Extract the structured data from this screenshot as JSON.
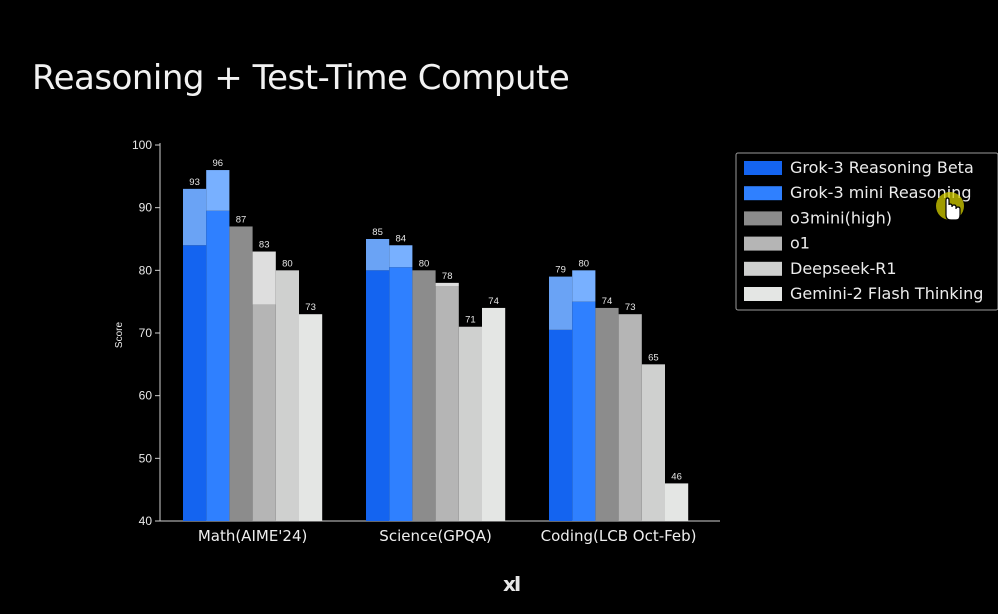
{
  "slide": {
    "title": "Reasoning + Test-Time Compute",
    "logo_text": "xI"
  },
  "chart_data": {
    "type": "bar",
    "title": "",
    "xlabel": "",
    "ylabel": "Score",
    "ylim": [
      40,
      100
    ],
    "yticks": [
      40,
      50,
      60,
      70,
      80,
      90,
      100
    ],
    "legend_position": "top-right (outside plot)",
    "categories": [
      "Math(AIME'24)",
      "Science(GPQA)",
      "Coding(LCB Oct-Feb)"
    ],
    "series": [
      {
        "name": "Grok-3 Reasoning Beta",
        "color": "#1464f0",
        "values": [
          93,
          85,
          79
        ],
        "base_values": [
          84,
          80,
          70.5
        ],
        "label_values": [
          "93",
          "85",
          "79"
        ]
      },
      {
        "name": "Grok-3 mini Reasoning",
        "color": "#2f80ff",
        "values": [
          96,
          84,
          80
        ],
        "base_values": [
          89.5,
          80.5,
          75
        ],
        "label_values": [
          "96",
          "84",
          "80"
        ]
      },
      {
        "name": "o3mini(high)",
        "color": "#8c8c8c",
        "values": [
          87,
          80,
          74
        ],
        "base_values": [
          87,
          80,
          74
        ],
        "label_values": [
          "87",
          "80",
          "74"
        ]
      },
      {
        "name": "o1",
        "color": "#b5b5b5",
        "values": [
          83,
          78,
          73
        ],
        "base_values": [
          74.5,
          77.5,
          73
        ],
        "label_values": [
          "83",
          "78",
          "73"
        ]
      },
      {
        "name": "Deepseek-R1",
        "color": "#cfd0cf",
        "values": [
          80,
          71,
          65
        ],
        "base_values": [
          80,
          71,
          65
        ],
        "label_values": [
          "80",
          "71",
          "65"
        ]
      },
      {
        "name": "Gemini-2 Flash Thinking",
        "color": "#e4e6e4",
        "values": [
          73,
          74,
          46
        ],
        "base_values": [
          73,
          74,
          46
        ],
        "label_values": [
          "73",
          "74",
          "46"
        ]
      }
    ],
    "upper_segment_colors": [
      "#6aa3f5",
      "#78b0ff",
      "#8c8c8c",
      "#dedede",
      "#cfd0cf",
      "#e4e6e4"
    ]
  }
}
